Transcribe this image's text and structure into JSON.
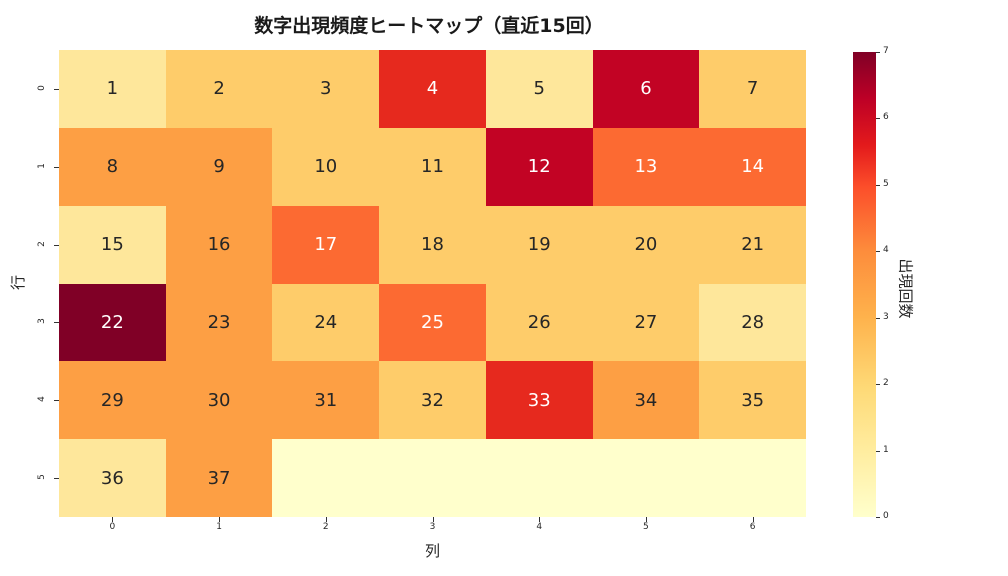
{
  "title": "数字出現頻度ヒートマップ（直近15回）",
  "xlabel": "列",
  "ylabel": "行",
  "colorbar": {
    "label": "出現回数",
    "ticks": [
      "0",
      "1",
      "2",
      "3",
      "4",
      "5",
      "6",
      "7"
    ],
    "min": 0,
    "max": 7,
    "colormap": "YlOrRd"
  },
  "x_ticks": [
    "0",
    "1",
    "2",
    "3",
    "4",
    "5",
    "6"
  ],
  "y_ticks": [
    "0",
    "1",
    "2",
    "3",
    "4",
    "5"
  ],
  "cells": [
    {
      "label": "1",
      "value": 1
    },
    {
      "label": "2",
      "value": 2
    },
    {
      "label": "3",
      "value": 2
    },
    {
      "label": "4",
      "value": 5
    },
    {
      "label": "5",
      "value": 1
    },
    {
      "label": "6",
      "value": 6
    },
    {
      "label": "7",
      "value": 2
    },
    {
      "label": "8",
      "value": 3
    },
    {
      "label": "9",
      "value": 3
    },
    {
      "label": "10",
      "value": 2
    },
    {
      "label": "11",
      "value": 2
    },
    {
      "label": "12",
      "value": 6
    },
    {
      "label": "13",
      "value": 4
    },
    {
      "label": "14",
      "value": 4
    },
    {
      "label": "15",
      "value": 1
    },
    {
      "label": "16",
      "value": 3
    },
    {
      "label": "17",
      "value": 4
    },
    {
      "label": "18",
      "value": 2
    },
    {
      "label": "19",
      "value": 2
    },
    {
      "label": "20",
      "value": 2
    },
    {
      "label": "21",
      "value": 2
    },
    {
      "label": "22",
      "value": 7
    },
    {
      "label": "23",
      "value": 3
    },
    {
      "label": "24",
      "value": 2
    },
    {
      "label": "25",
      "value": 4
    },
    {
      "label": "26",
      "value": 2
    },
    {
      "label": "27",
      "value": 2
    },
    {
      "label": "28",
      "value": 1
    },
    {
      "label": "29",
      "value": 3
    },
    {
      "label": "30",
      "value": 3
    },
    {
      "label": "31",
      "value": 3
    },
    {
      "label": "32",
      "value": 2
    },
    {
      "label": "33",
      "value": 5
    },
    {
      "label": "34",
      "value": 3
    },
    {
      "label": "35",
      "value": 2
    },
    {
      "label": "36",
      "value": 1
    },
    {
      "label": "37",
      "value": 3
    },
    {
      "label": "",
      "value": 0
    },
    {
      "label": "",
      "value": 0
    },
    {
      "label": "",
      "value": 0
    },
    {
      "label": "",
      "value": 0
    },
    {
      "label": "",
      "value": 0
    }
  ],
  "palette": [
    "#ffffcc",
    "#fee79b",
    "#fecc6a",
    "#fd9f44",
    "#fc6a32",
    "#e6291e",
    "#c20324",
    "#800026"
  ],
  "chart_data": {
    "type": "heatmap",
    "title": "数字出現頻度ヒートマップ（直近15回）",
    "xlabel": "列",
    "ylabel": "行",
    "x_categories": [
      "0",
      "1",
      "2",
      "3",
      "4",
      "5",
      "6"
    ],
    "y_categories": [
      "0",
      "1",
      "2",
      "3",
      "4",
      "5"
    ],
    "annotations": [
      [
        1,
        2,
        3,
        4,
        5,
        6,
        7
      ],
      [
        8,
        9,
        10,
        11,
        12,
        13,
        14
      ],
      [
        15,
        16,
        17,
        18,
        19,
        20,
        21
      ],
      [
        22,
        23,
        24,
        25,
        26,
        27,
        28
      ],
      [
        29,
        30,
        31,
        32,
        33,
        34,
        35
      ],
      [
        36,
        37,
        null,
        null,
        null,
        null,
        null
      ]
    ],
    "values": [
      [
        1,
        2,
        2,
        5,
        1,
        6,
        2
      ],
      [
        3,
        3,
        2,
        2,
        6,
        4,
        4
      ],
      [
        1,
        3,
        4,
        2,
        2,
        2,
        2
      ],
      [
        7,
        3,
        2,
        4,
        2,
        2,
        1
      ],
      [
        3,
        3,
        3,
        2,
        5,
        3,
        2
      ],
      [
        1,
        3,
        0,
        0,
        0,
        0,
        0
      ]
    ],
    "colorbar_label": "出現回数",
    "colorbar_range": [
      0,
      7
    ],
    "colormap": "YlOrRd"
  }
}
